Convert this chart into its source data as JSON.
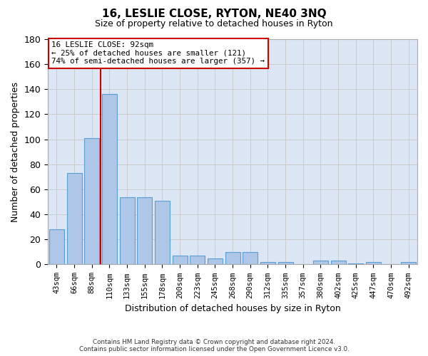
{
  "title": "16, LESLIE CLOSE, RYTON, NE40 3NQ",
  "subtitle": "Size of property relative to detached houses in Ryton",
  "xlabel": "Distribution of detached houses by size in Ryton",
  "ylabel": "Number of detached properties",
  "categories": [
    "43sqm",
    "66sqm",
    "88sqm",
    "110sqm",
    "133sqm",
    "155sqm",
    "178sqm",
    "200sqm",
    "223sqm",
    "245sqm",
    "268sqm",
    "290sqm",
    "312sqm",
    "335sqm",
    "357sqm",
    "380sqm",
    "402sqm",
    "425sqm",
    "447sqm",
    "470sqm",
    "492sqm"
  ],
  "values": [
    28,
    73,
    101,
    136,
    54,
    54,
    51,
    7,
    7,
    5,
    10,
    10,
    2,
    2,
    0,
    3,
    3,
    1,
    2,
    0,
    2
  ],
  "bar_color": "#aec6e8",
  "bar_edgecolor": "#5a9fd4",
  "vline_x": 2.5,
  "vline_color": "#cc0000",
  "annotation_text_line1": "16 LESLIE CLOSE: 92sqm",
  "annotation_text_line2": "← 25% of detached houses are smaller (121)",
  "annotation_text_line3": "74% of semi-detached houses are larger (357) →",
  "annotation_box_edgecolor": "#cc0000",
  "ylim": [
    0,
    180
  ],
  "yticks": [
    0,
    20,
    40,
    60,
    80,
    100,
    120,
    140,
    160,
    180
  ],
  "grid_color": "#cccccc",
  "background_color": "#dce6f5",
  "footer_line1": "Contains HM Land Registry data © Crown copyright and database right 2024.",
  "footer_line2": "Contains public sector information licensed under the Open Government Licence v3.0."
}
